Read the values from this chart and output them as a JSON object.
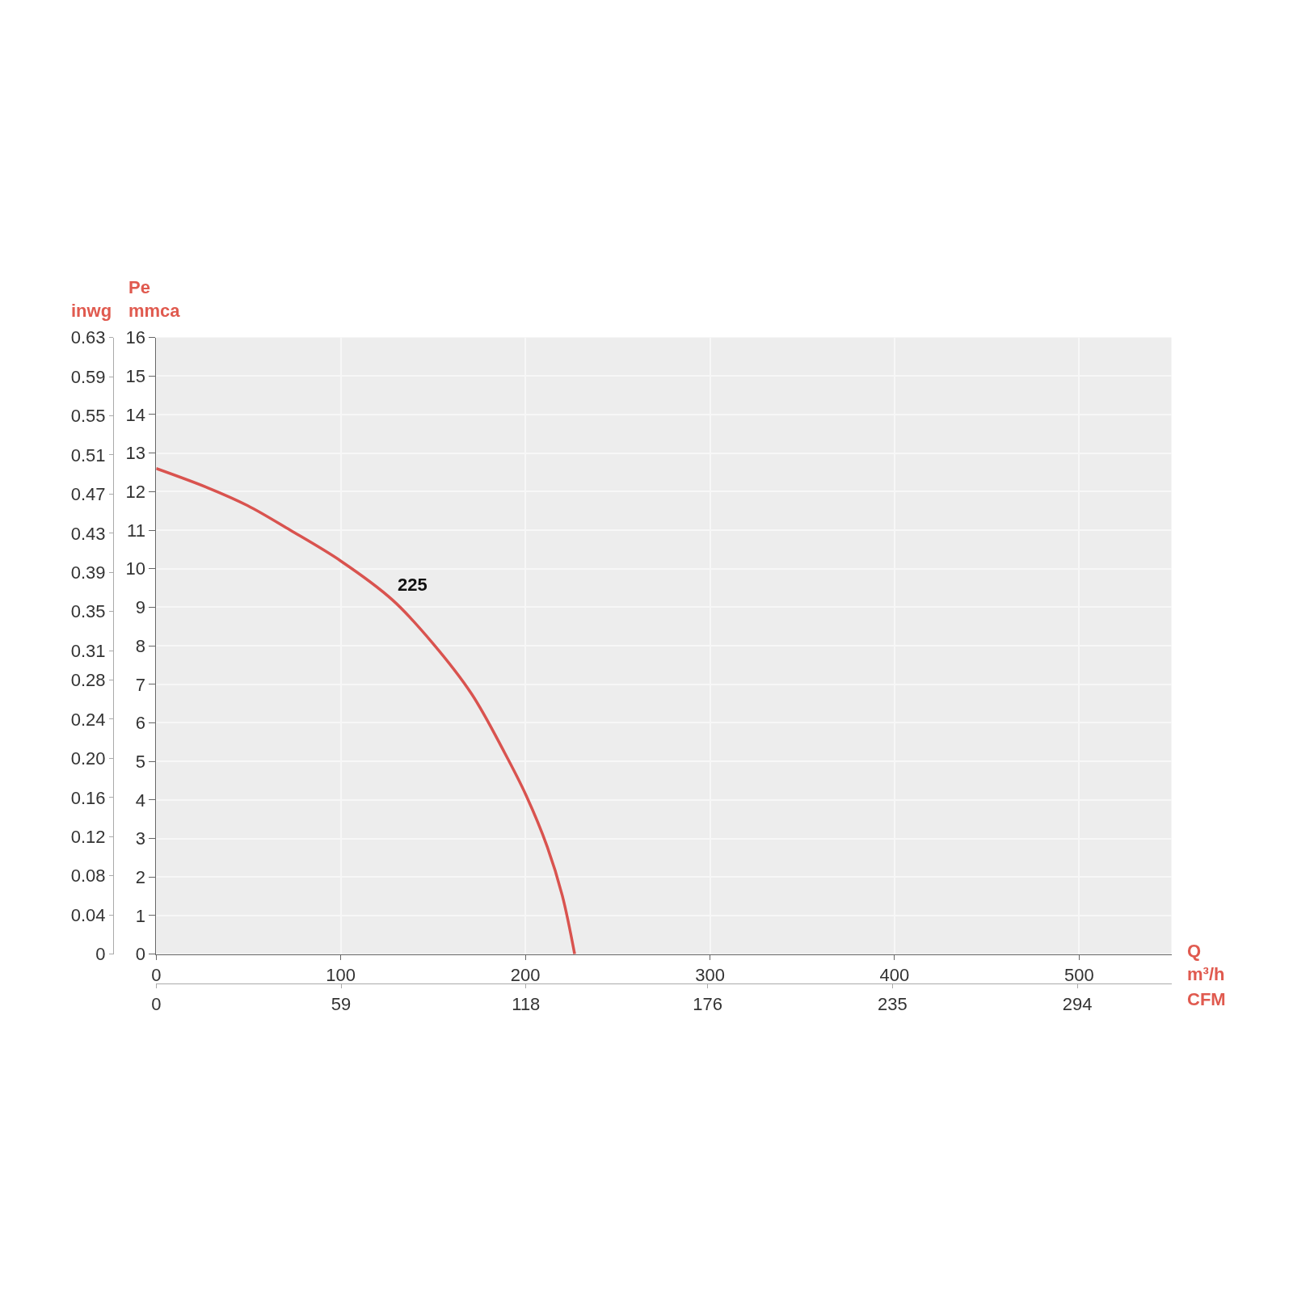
{
  "chart_data": {
    "type": "line",
    "xlabel": "Q\nm³/h",
    "x2label": "CFM",
    "ylabel": "Pe\nmmca",
    "y2label": "inwg",
    "series": [
      {
        "name": "225",
        "color": "#d9534f",
        "x": [
          0,
          27.9,
          49.4,
          72.6,
          100,
          128,
          149.4,
          170.9,
          188.7,
          200.3,
          211.9,
          220,
          226.7
        ],
        "values": [
          12.6,
          12.1,
          11.64,
          11.0,
          10.2,
          9.19,
          8.09,
          6.75,
          5.23,
          4.13,
          2.78,
          1.52,
          0
        ]
      }
    ],
    "xlim": [
      0,
      550
    ],
    "xticks": [
      0,
      100,
      200,
      300,
      400,
      500
    ],
    "x2lim": [
      0,
      324
    ],
    "x2ticks": [
      0,
      59,
      118,
      176,
      235,
      294
    ],
    "ylim": [
      0,
      16
    ],
    "yticks": [
      0,
      1,
      2,
      3,
      4,
      5,
      6,
      7,
      8,
      9,
      10,
      11,
      12,
      13,
      14,
      15,
      16
    ],
    "y2lim": [
      0,
      0.63
    ],
    "y2ticks": [
      0,
      0.04,
      0.08,
      0.12,
      0.16,
      {
        "value": 0.2,
        "label": "0.20"
      },
      0.24,
      0.28,
      0.31,
      0.35,
      0.39,
      0.43,
      0.47,
      0.51,
      0.55,
      0.59,
      0.63
    ],
    "grid": true,
    "legend": false,
    "marker": "none",
    "line_style": "solid"
  }
}
